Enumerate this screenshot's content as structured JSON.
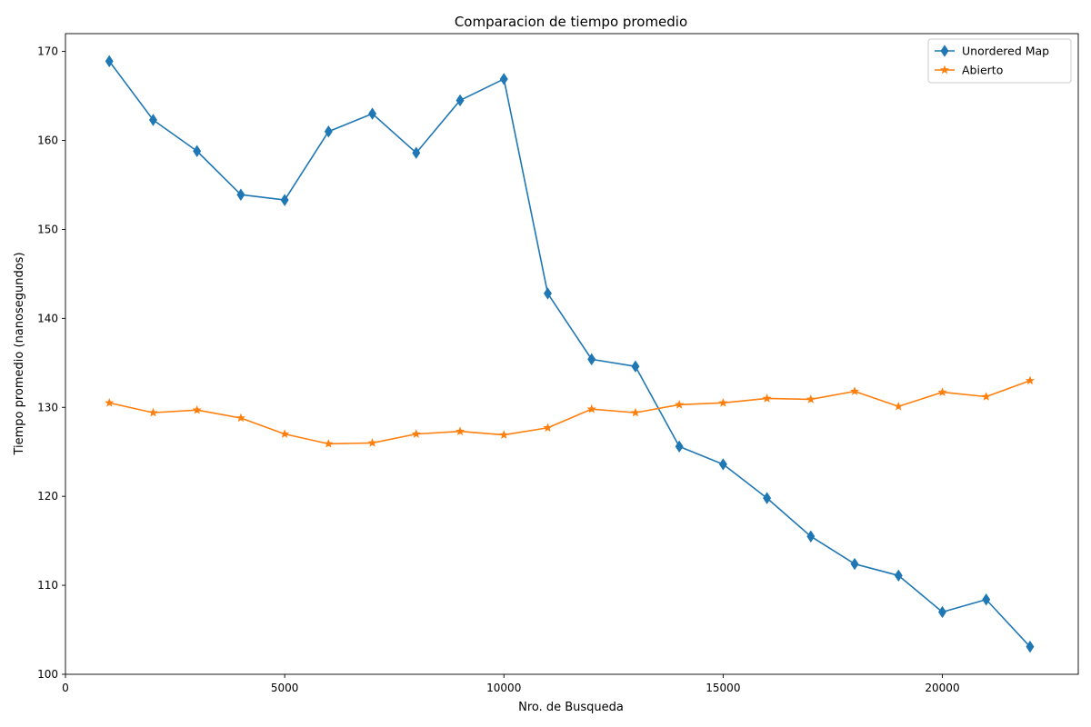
{
  "chart_data": {
    "type": "line",
    "title": "Comparacion de tiempo promedio",
    "xlabel": "Nro. de Busqueda",
    "ylabel": "Tiempo promedio (nanosegundos)",
    "xlim": [
      0,
      23100
    ],
    "ylim": [
      100,
      172
    ],
    "x_ticks": [
      0,
      5000,
      10000,
      15000,
      20000
    ],
    "y_ticks": [
      100,
      110,
      120,
      130,
      140,
      150,
      160,
      170
    ],
    "grid": false,
    "legend_position": "top-right",
    "x": [
      1000,
      2000,
      3000,
      4000,
      5000,
      6000,
      7000,
      8000,
      9000,
      10000,
      11000,
      12000,
      13000,
      14000,
      15000,
      16000,
      17000,
      18000,
      19000,
      20000,
      21000,
      22000
    ],
    "series": [
      {
        "name": "Unordered Map",
        "color": "#1f77b4",
        "marker": "diamond",
        "values": [
          168.9,
          162.3,
          158.8,
          153.9,
          153.3,
          161.0,
          163.0,
          158.6,
          164.5,
          166.9,
          142.8,
          135.4,
          134.6,
          125.6,
          123.6,
          119.8,
          115.5,
          112.4,
          111.1,
          107.0,
          108.4,
          103.1
        ]
      },
      {
        "name": "Abierto",
        "color": "#ff7f0e",
        "marker": "star",
        "values": [
          130.5,
          129.4,
          129.7,
          128.8,
          127.0,
          125.9,
          126.0,
          127.0,
          127.3,
          126.9,
          127.7,
          129.8,
          129.4,
          130.3,
          130.5,
          131.0,
          130.9,
          131.8,
          130.1,
          131.7,
          131.2,
          133.0
        ]
      }
    ]
  }
}
